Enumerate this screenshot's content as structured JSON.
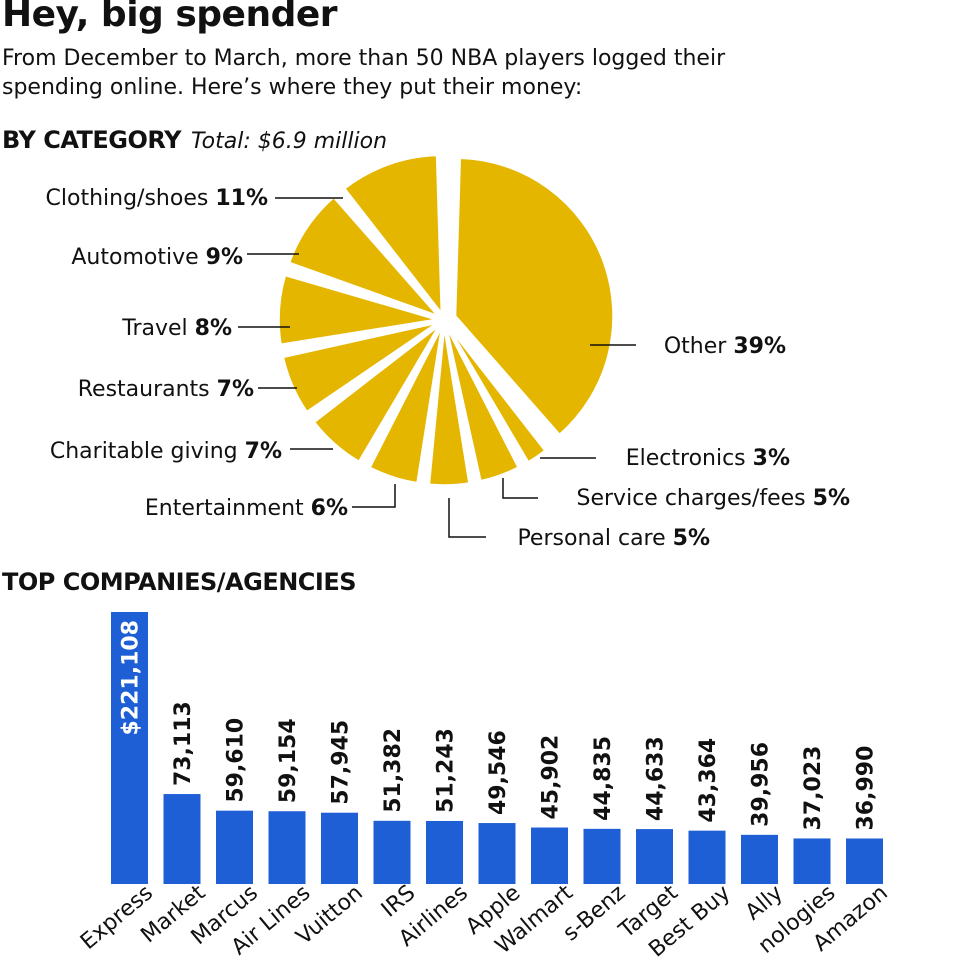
{
  "title": "Hey, big spender",
  "subtitle": "From December to March, more than 50 NBA players logged their spending online. Here’s where they put their money:",
  "pie_section": {
    "heading": "BY CATEGORY",
    "note": "Total: $6.9 million"
  },
  "bar_section": {
    "heading": "TOP COMPANIES/AGENCIES"
  },
  "colors": {
    "pie": "#e5b600",
    "bar": "#1e5fd6",
    "text": "#111111",
    "highlight_text": "#ffffff"
  },
  "chart_data": [
    {
      "type": "pie",
      "title": "BY CATEGORY",
      "subtitle": "Total: $6.9 million",
      "slices": [
        {
          "label": "Other",
          "pct_label": "39%",
          "value": 39
        },
        {
          "label": "Electronics",
          "pct_label": "3%",
          "value": 3
        },
        {
          "label": "Service charges/fees",
          "pct_label": "5%",
          "value": 5
        },
        {
          "label": "Personal care",
          "pct_label": "5%",
          "value": 5
        },
        {
          "label": "Entertainment",
          "pct_label": "6%",
          "value": 6
        },
        {
          "label": "Charitable giving",
          "pct_label": "7%",
          "value": 7
        },
        {
          "label": "Restaurants",
          "pct_label": "7%",
          "value": 7
        },
        {
          "label": "Travel",
          "pct_label": "8%",
          "value": 8
        },
        {
          "label": "Automotive",
          "pct_label": "9%",
          "value": 9
        },
        {
          "label": "Clothing/shoes",
          "pct_label": "11%",
          "value": 11
        }
      ]
    },
    {
      "type": "bar",
      "title": "TOP COMPANIES/AGENCIES",
      "categories": [
        "Express",
        "Market",
        "Marcus",
        "Air Lines",
        "Vuitton",
        "IRS",
        "Airlines",
        "Apple",
        "Walmart",
        "s-Benz",
        "Target",
        "Best Buy",
        "Ally",
        "nologies",
        "Amazon"
      ],
      "value_labels": [
        "$221,108",
        "73,113",
        "59,610",
        "59,154",
        "57,945",
        "51,382",
        "51,243",
        "49,546",
        "45,902",
        "44,835",
        "44,633",
        "43,364",
        "39,956",
        "37,023",
        "36,990"
      ],
      "values": [
        221108,
        73113,
        59610,
        59154,
        57945,
        51382,
        51243,
        49546,
        45902,
        44835,
        44633,
        43364,
        39956,
        37023,
        36990
      ],
      "ylim": [
        0,
        221108
      ]
    }
  ]
}
